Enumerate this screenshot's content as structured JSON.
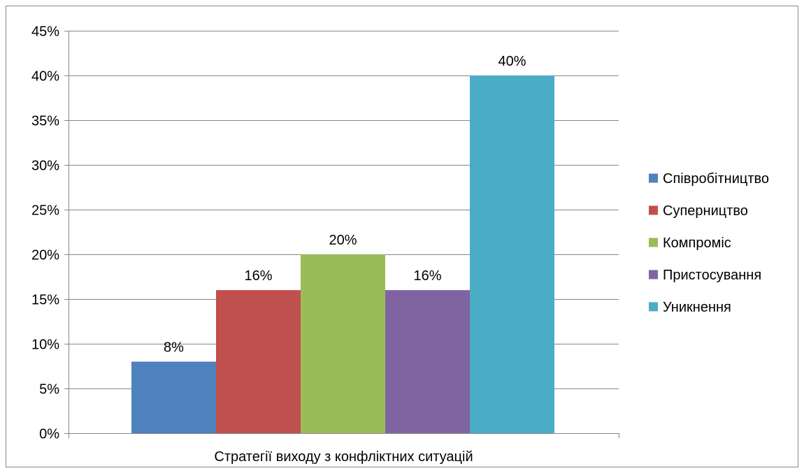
{
  "chart_data": {
    "type": "bar",
    "categories": [
      "Стратегії виходу з конфліктних ситуацій"
    ],
    "series": [
      {
        "name": "Співробітництво",
        "values": [
          8
        ],
        "color": "#4F81BD"
      },
      {
        "name": "Суперництво",
        "values": [
          16
        ],
        "color": "#C0504D"
      },
      {
        "name": "Компроміс",
        "values": [
          20
        ],
        "color": "#9BBB59"
      },
      {
        "name": "Пристосування",
        "values": [
          16
        ],
        "color": "#8064A2"
      },
      {
        "name": "Уникнення",
        "values": [
          40
        ],
        "color": "#4BACC6"
      }
    ],
    "data_labels": [
      "8%",
      "16%",
      "20%",
      "16%",
      "40%"
    ],
    "y_ticks": [
      "0%",
      "5%",
      "10%",
      "15%",
      "20%",
      "25%",
      "30%",
      "35%",
      "40%",
      "45%"
    ],
    "ylim": [
      0,
      45
    ],
    "y_unit": "%",
    "grid": true,
    "legend_position": "right",
    "title": "",
    "xlabel": "",
    "ylabel": ""
  }
}
